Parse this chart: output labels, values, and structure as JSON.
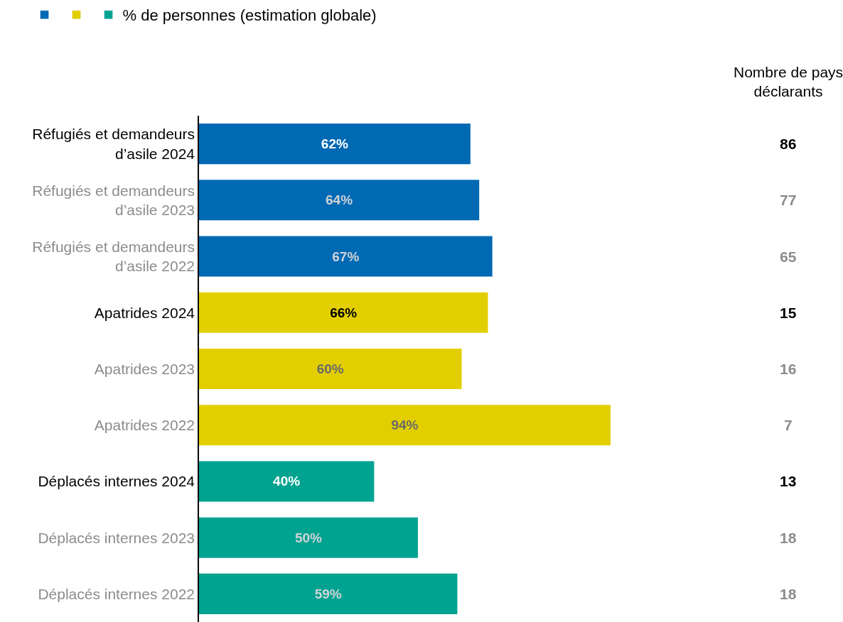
{
  "chart_data": {
    "type": "bar",
    "orientation": "horizontal",
    "legend": "top left",
    "categories": [
      "Réfugiés et demandeurs d’asile 2024",
      "Réfugiés et demandeurs d’asile 2023",
      "Réfugiés et demandeurs d’asile 2022",
      "Apatrides 2024",
      "Apatrides 2023",
      "Apatrides 2022",
      "Déplacés internes 2024",
      "Déplacés internes 2023",
      "Déplacés internes 2022"
    ],
    "series": [
      {
        "name": "% de personnes (estimation globale)",
        "values": [
          62,
          64,
          67,
          66,
          60,
          94,
          40,
          50,
          59
        ],
        "value_labels": [
          "62%",
          "64%",
          "67%",
          "66%",
          "60%",
          "94%",
          "40%",
          "50%",
          "59%"
        ],
        "colors": [
          "#0069b4",
          "#0069b4",
          "#0069b4",
          "#e3cf00",
          "#e3cf00",
          "#e3cf00",
          "#00a390",
          "#00a390",
          "#00a390"
        ]
      }
    ],
    "annotations": [
      "Nombre de pays déclarants",
      "86",
      "77",
      "65",
      "15",
      "16",
      "7",
      "13",
      "18",
      "18"
    ]
  }
}
